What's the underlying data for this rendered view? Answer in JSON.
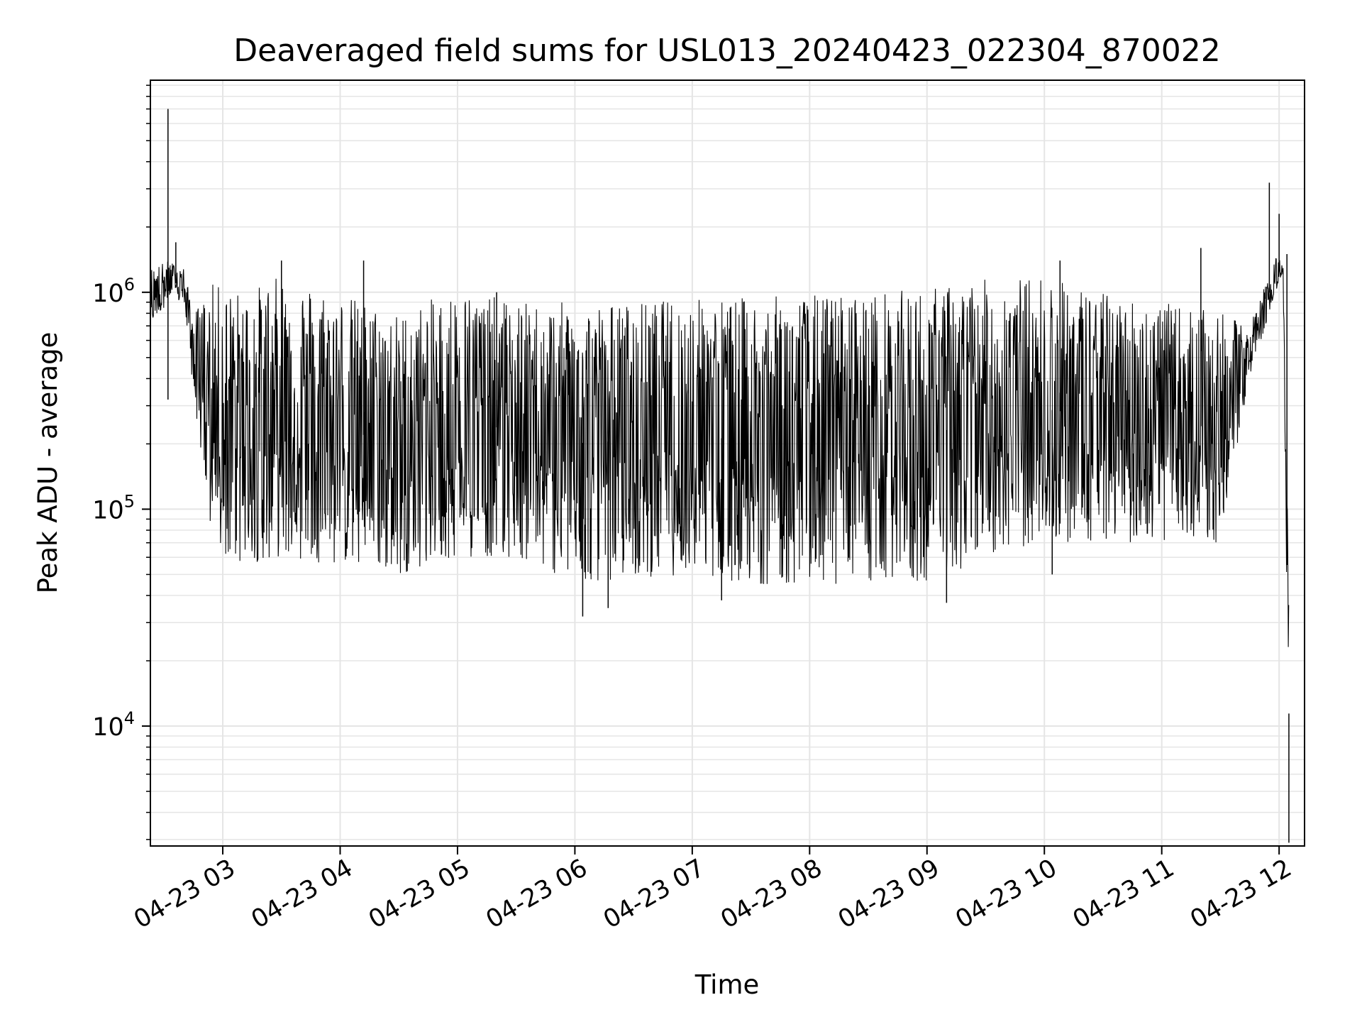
{
  "chart_data": {
    "type": "line",
    "title": "Deaveraged field sums for USL013_20240423_022304_870022",
    "xlabel": "Time",
    "ylabel": "Peak ADU - average",
    "yscale": "log",
    "grid": true,
    "line_color": "#000000",
    "grid_color": "#e5e5e5",
    "x_axis": {
      "type": "time",
      "range": [
        "2024-04-23 02:23",
        "2024-04-23 12:13"
      ],
      "ticks": [
        {
          "time": "2024-04-23 03:00",
          "label": "04-23 03"
        },
        {
          "time": "2024-04-23 04:00",
          "label": "04-23 04"
        },
        {
          "time": "2024-04-23 05:00",
          "label": "04-23 05"
        },
        {
          "time": "2024-04-23 06:00",
          "label": "04-23 06"
        },
        {
          "time": "2024-04-23 07:00",
          "label": "04-23 07"
        },
        {
          "time": "2024-04-23 08:00",
          "label": "04-23 08"
        },
        {
          "time": "2024-04-23 09:00",
          "label": "04-23 09"
        },
        {
          "time": "2024-04-23 10:00",
          "label": "04-23 10"
        },
        {
          "time": "2024-04-23 11:00",
          "label": "04-23 11"
        },
        {
          "time": "2024-04-23 12:00",
          "label": "04-23 12"
        }
      ]
    },
    "y_axis": {
      "range": [
        2800,
        9500000
      ],
      "major_ticks": [
        {
          "value": 10000,
          "base": "10",
          "exp": "4"
        },
        {
          "value": 100000,
          "base": "10",
          "exp": "5"
        },
        {
          "value": 1000000,
          "base": "10",
          "exp": "6"
        }
      ]
    },
    "envelope": [
      {
        "time": "2024-04-23 02:23",
        "low": 700000,
        "high": 1300000
      },
      {
        "time": "2024-04-23 02:32",
        "low": 900000,
        "high": 1400000
      },
      {
        "time": "2024-04-23 02:40",
        "low": 900000,
        "high": 1300000
      },
      {
        "time": "2024-04-23 02:45",
        "low": 350000,
        "high": 800000
      },
      {
        "time": "2024-04-23 02:55",
        "low": 60000,
        "high": 1100000
      },
      {
        "time": "2024-04-23 03:10",
        "low": 55000,
        "high": 1000000
      },
      {
        "time": "2024-04-23 03:30",
        "low": 60000,
        "high": 1200000
      },
      {
        "time": "2024-04-23 04:00",
        "low": 55000,
        "high": 1000000
      },
      {
        "time": "2024-04-23 04:30",
        "low": 50000,
        "high": 800000
      },
      {
        "time": "2024-04-23 05:00",
        "low": 60000,
        "high": 1050000
      },
      {
        "time": "2024-04-23 05:30",
        "low": 60000,
        "high": 900000
      },
      {
        "time": "2024-04-23 06:00",
        "low": 45000,
        "high": 900000
      },
      {
        "time": "2024-04-23 06:30",
        "low": 48000,
        "high": 900000
      },
      {
        "time": "2024-04-23 07:00",
        "low": 50000,
        "high": 950000
      },
      {
        "time": "2024-04-23 07:30",
        "low": 45000,
        "high": 950000
      },
      {
        "time": "2024-04-23 08:00",
        "low": 45000,
        "high": 980000
      },
      {
        "time": "2024-04-23 08:30",
        "low": 45000,
        "high": 1000000
      },
      {
        "time": "2024-04-23 09:00",
        "low": 45000,
        "high": 1050000
      },
      {
        "time": "2024-04-23 09:30",
        "low": 60000,
        "high": 1150000
      },
      {
        "time": "2024-04-23 10:00",
        "low": 70000,
        "high": 1200000
      },
      {
        "time": "2024-04-23 10:30",
        "low": 70000,
        "high": 1000000
      },
      {
        "time": "2024-04-23 11:00",
        "low": 70000,
        "high": 900000
      },
      {
        "time": "2024-04-23 11:30",
        "low": 70000,
        "high": 800000
      },
      {
        "time": "2024-04-23 11:45",
        "low": 400000,
        "high": 700000
      },
      {
        "time": "2024-04-23 11:58",
        "low": 1000000,
        "high": 1450000
      },
      {
        "time": "2024-04-23 12:02",
        "low": 1200000,
        "high": 1400000
      },
      {
        "time": "2024-04-23 12:05",
        "low": 2900,
        "high": 45000
      }
    ],
    "spikes": [
      {
        "time": "2024-04-23 02:32",
        "value": 7000000
      },
      {
        "time": "2024-04-23 02:32",
        "value": 320000
      },
      {
        "time": "2024-04-23 02:36",
        "value": 1700000
      },
      {
        "time": "2024-04-23 03:30",
        "value": 1400000
      },
      {
        "time": "2024-04-23 04:12",
        "value": 1400000
      },
      {
        "time": "2024-04-23 05:20",
        "value": 1000000
      },
      {
        "time": "2024-04-23 06:04",
        "value": 32000
      },
      {
        "time": "2024-04-23 06:17",
        "value": 35000
      },
      {
        "time": "2024-04-23 07:15",
        "value": 38000
      },
      {
        "time": "2024-04-23 09:10",
        "value": 37000
      },
      {
        "time": "2024-04-23 10:04",
        "value": 50000
      },
      {
        "time": "2024-04-23 10:08",
        "value": 1400000
      },
      {
        "time": "2024-04-23 11:20",
        "value": 1600000
      },
      {
        "time": "2024-04-23 11:55",
        "value": 3200000
      },
      {
        "time": "2024-04-23 12:00",
        "value": 2300000
      },
      {
        "time": "2024-04-23 12:04",
        "value": 1500000
      },
      {
        "time": "2024-04-23 12:05",
        "value": 2900
      }
    ]
  }
}
